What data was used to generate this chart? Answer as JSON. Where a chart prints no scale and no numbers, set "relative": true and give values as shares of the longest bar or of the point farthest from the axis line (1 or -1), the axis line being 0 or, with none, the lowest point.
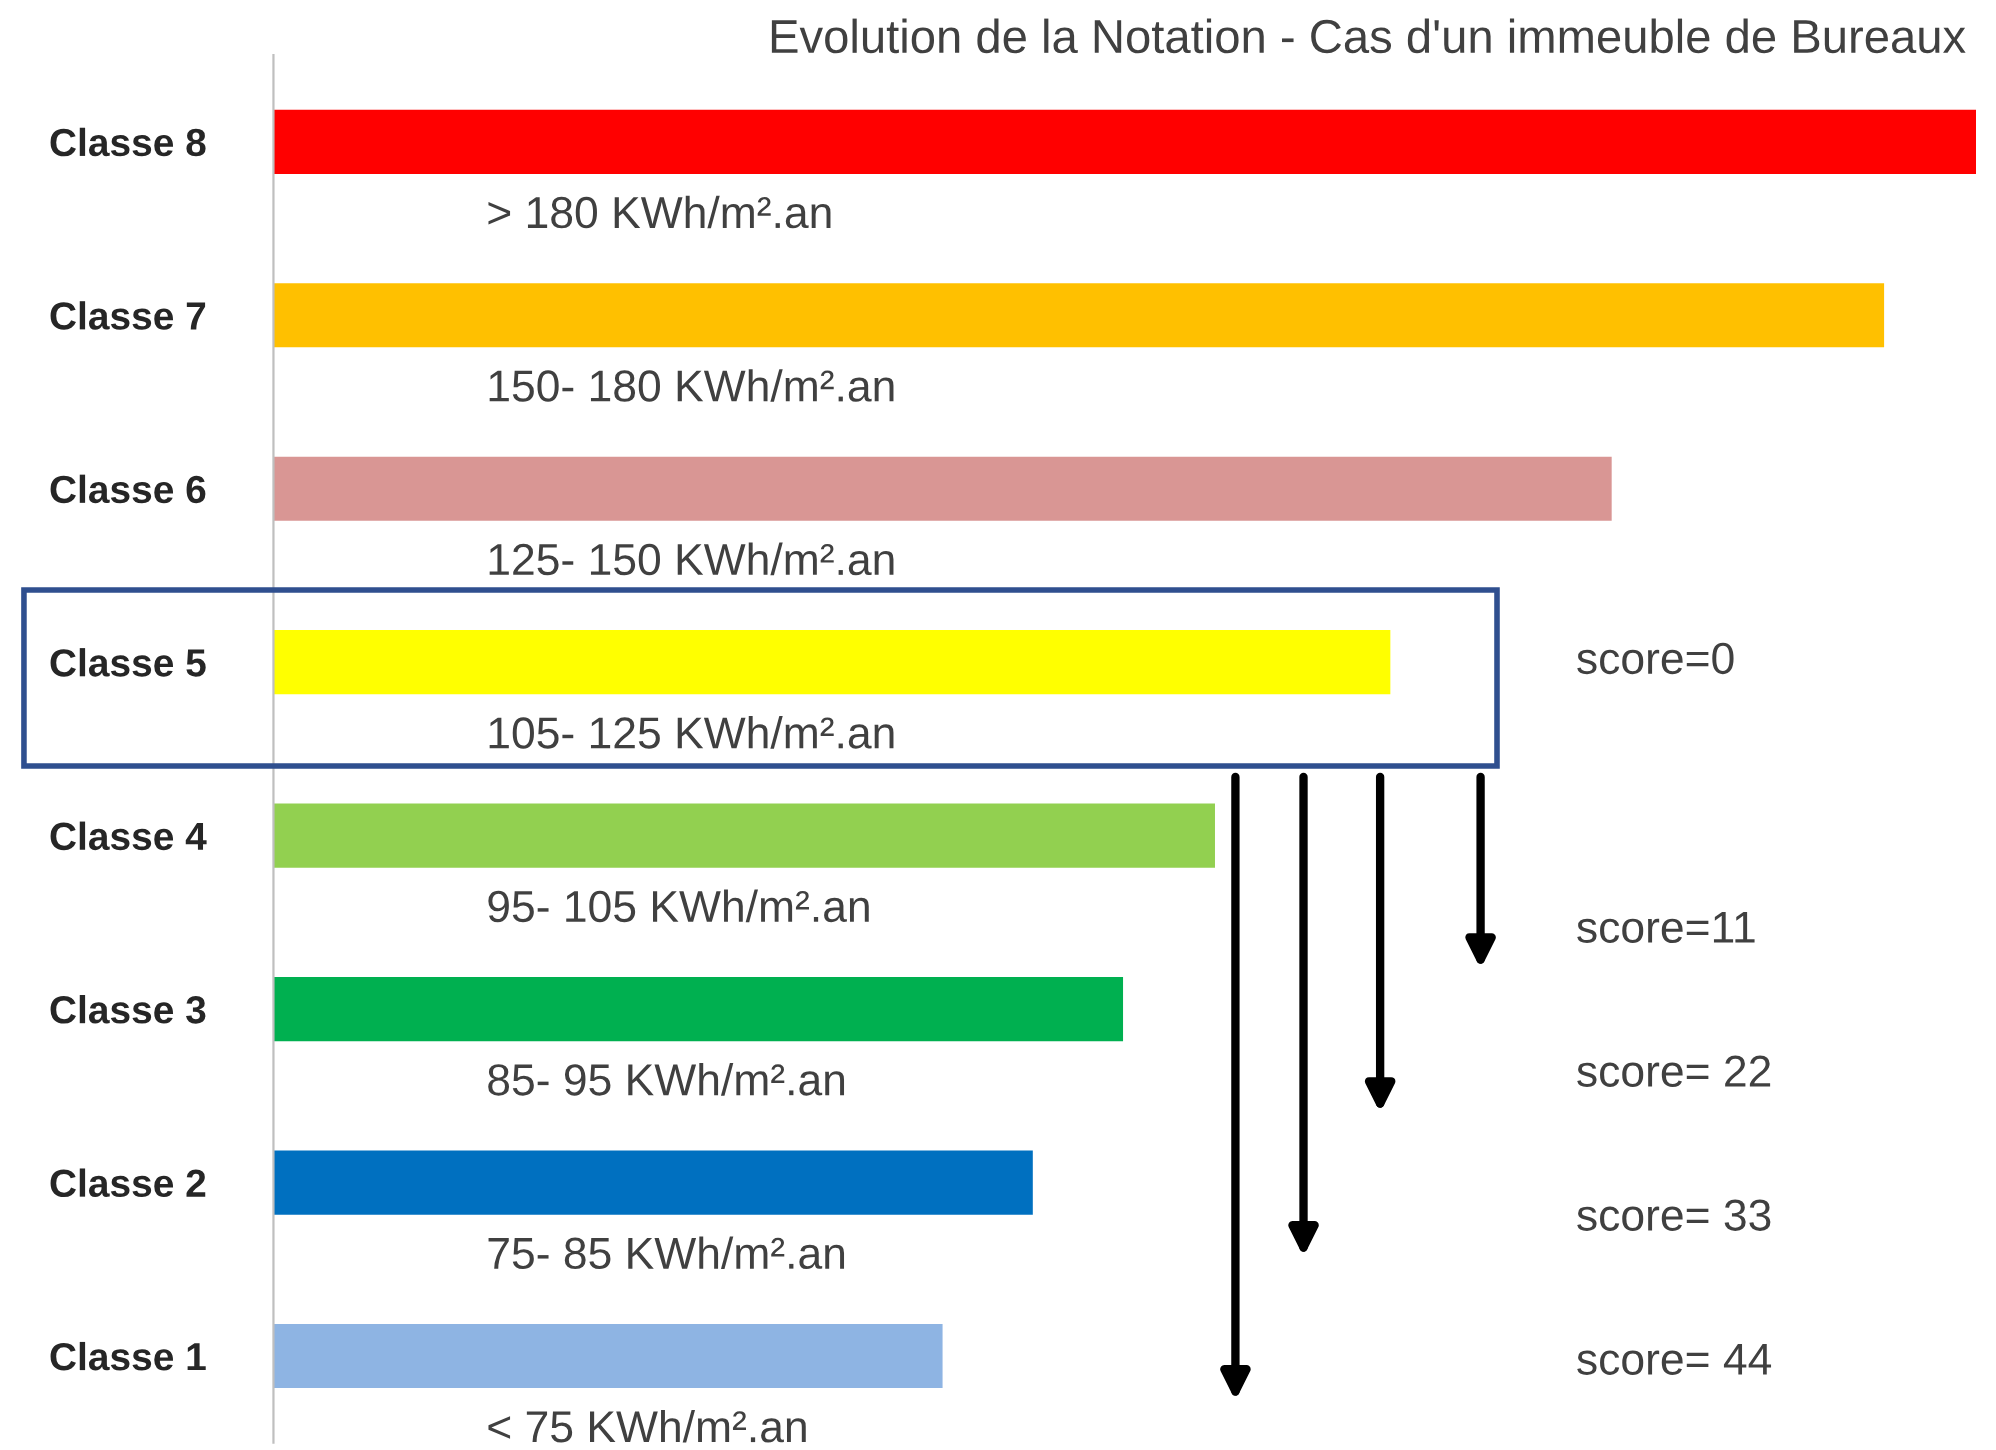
{
  "chart_data": {
    "type": "bar",
    "orientation": "horizontal",
    "relative": true,
    "title": "Evolution de la Notation - Cas d'un immeuble de Bureaux",
    "categories": [
      "Classe 8",
      "Classe 7",
      "Classe 6",
      "Classe 5",
      "Classe 4",
      "Classe 3",
      "Classe 2",
      "Classe 1"
    ],
    "values": [
      1,
      0.946,
      0.786,
      0.656,
      0.553,
      0.499,
      0.446,
      0.393
    ],
    "colors": [
      "#ff0000",
      "#ffc000",
      "#d99694",
      "#ffff00",
      "#92d050",
      "#00b050",
      "#0070c0",
      "#8eb4e3"
    ],
    "annotations": [
      "> 180 KWh/m².an",
      "150- 180 KWh/m².an",
      "125- 150 KWh/m².an",
      "105- 125 KWh/m².an",
      "95- 105 KWh/m².an",
      "85- 95 KWh/m².an",
      "75- 85 KWh/m².an",
      "< 75 KWh/m².an",
      "score=0",
      "score=11",
      "score= 22",
      "score= 33",
      "score= 44"
    ],
    "grid": false,
    "legend": false
  }
}
